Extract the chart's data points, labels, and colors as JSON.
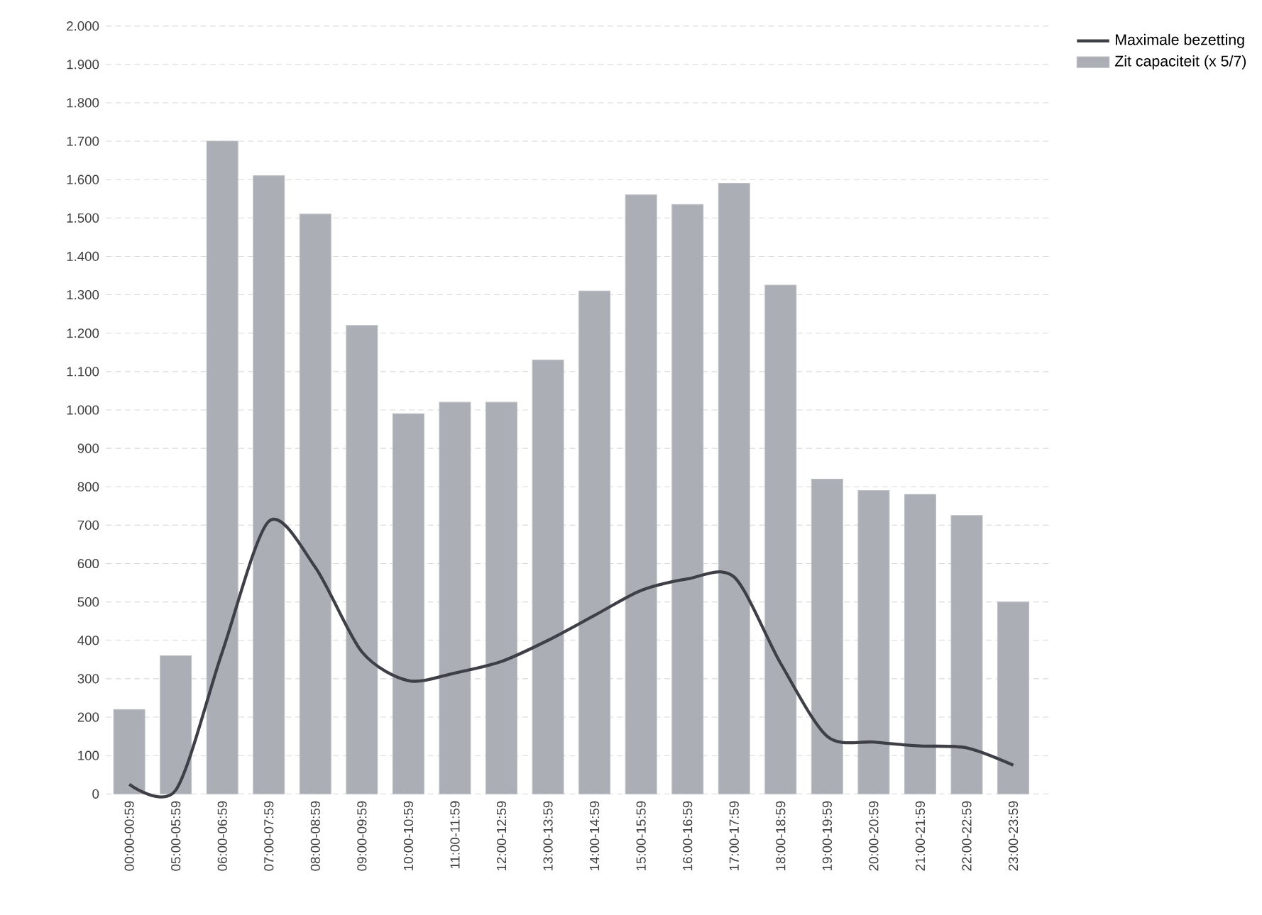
{
  "chart_data": {
    "type": "bar",
    "categories": [
      "00:00-00:59",
      "05:00-05:59",
      "06:00-06:59",
      "07:00-07:59",
      "08:00-08:59",
      "09:00-09:59",
      "10:00-10:59",
      "11:00-11:59",
      "12:00-12:59",
      "13:00-13:59",
      "14:00-14:59",
      "15:00-15:59",
      "16:00-16:59",
      "17:00-17:59",
      "18:00-18:59",
      "19:00-19:59",
      "20:00-20:59",
      "21:00-21:59",
      "22:00-22:59",
      "23:00-23:59"
    ],
    "series": [
      {
        "name": "Zit capaciteit (x 5/7)",
        "color": "#abafb5",
        "values": [
          220,
          360,
          1700,
          1610,
          1510,
          1220,
          990,
          1020,
          1020,
          1130,
          1310,
          1560,
          1535,
          1590,
          1325,
          820,
          790,
          780,
          725,
          500
        ]
      },
      {
        "name": "Maximale bezetting",
        "type": "line",
        "color": "#3f3f48",
        "line_style": "solid",
        "values": [
          25,
          10,
          370,
          710,
          590,
          370,
          295,
          315,
          345,
          400,
          465,
          530,
          560,
          565,
          340,
          150,
          135,
          125,
          120,
          75
        ]
      }
    ],
    "ylim": [
      0,
      2000
    ],
    "yticks": [
      0,
      100,
      200,
      300,
      400,
      500,
      600,
      700,
      800,
      900,
      {
        "value": 1000,
        "label": "1.000"
      },
      {
        "value": 1100,
        "label": "1.100"
      },
      {
        "value": 1200,
        "label": "1.200"
      },
      {
        "value": 1300,
        "label": "1.300"
      },
      {
        "value": 1400,
        "label": "1.400"
      },
      {
        "value": 1500,
        "label": "1.500"
      },
      {
        "value": 1600,
        "label": "1.600"
      },
      {
        "value": 1700,
        "label": "1.700"
      },
      {
        "value": 1800,
        "label": "1.800"
      },
      {
        "value": 1900,
        "label": "1.900"
      },
      {
        "value": 2000,
        "label": "2.000"
      }
    ],
    "grid": "y",
    "legend": "top right",
    "marker": "none"
  }
}
